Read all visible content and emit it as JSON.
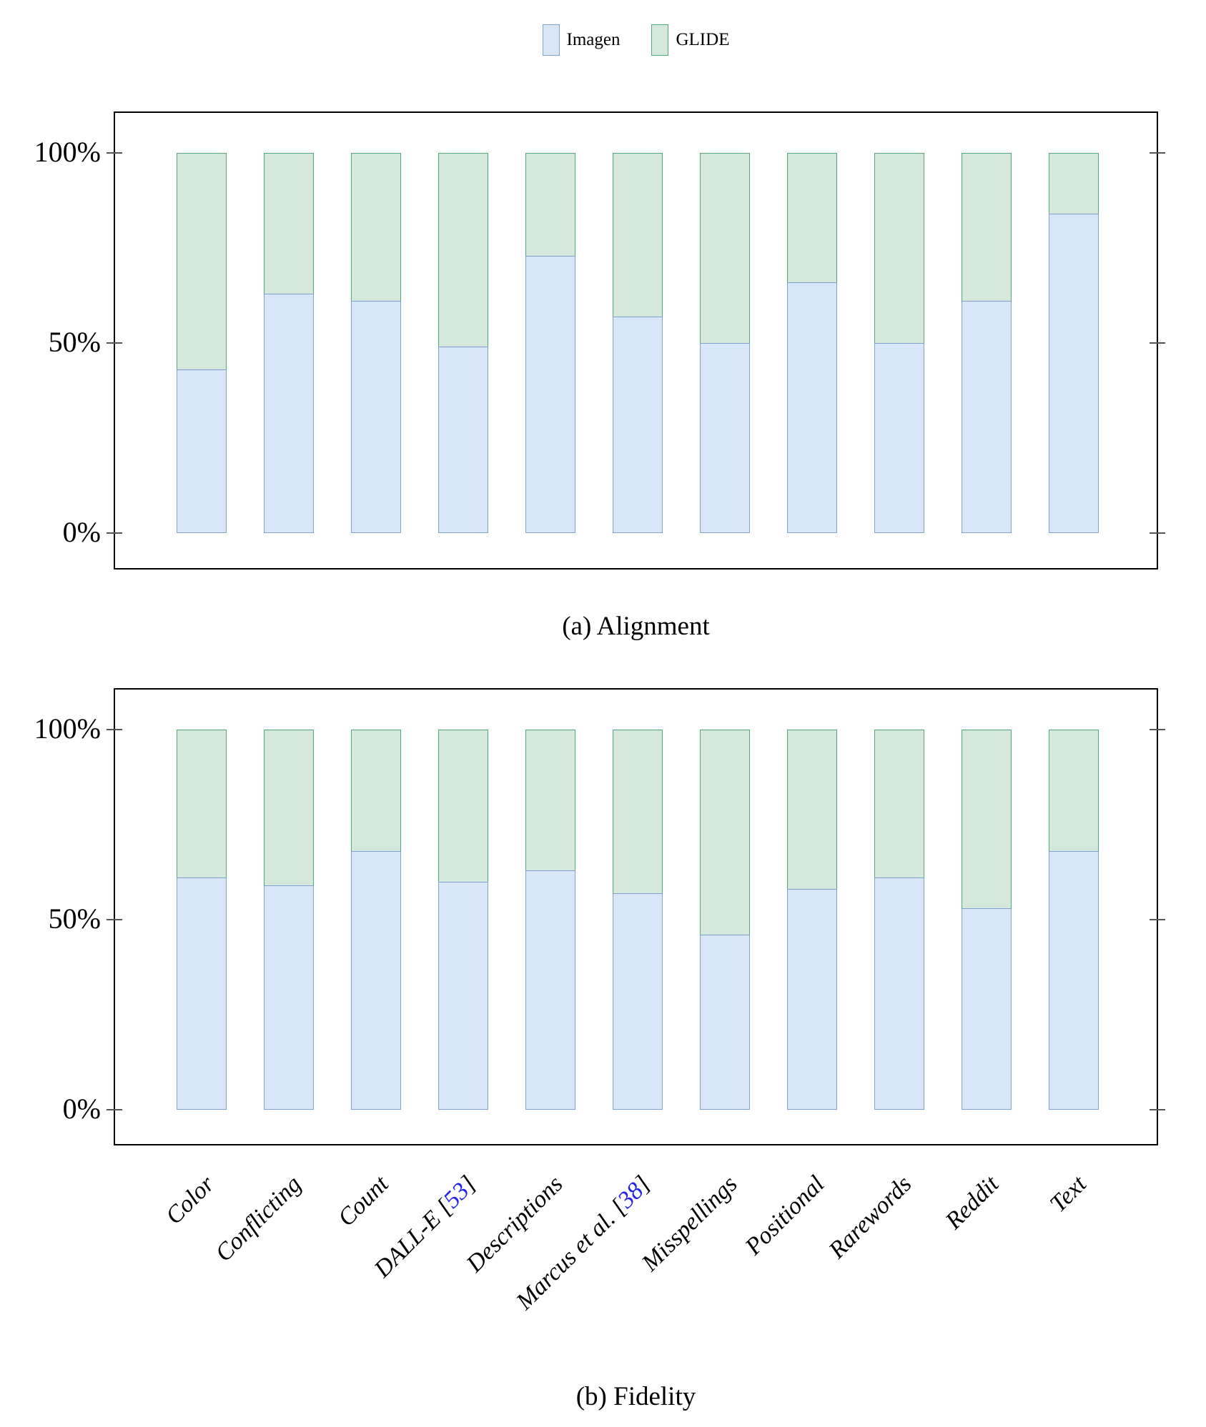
{
  "colors": {
    "imagen_fill": "#d9e6f8",
    "imagen_border": "#7fa3d1",
    "glide_fill": "#d4e9db",
    "glide_border": "#50a97d",
    "axis": "#000000",
    "tick": "#555555",
    "citation_blue": "#2222ee"
  },
  "legend": {
    "items": [
      {
        "label": "Imagen",
        "color_key": "imagen"
      },
      {
        "label": "GLIDE",
        "color_key": "glide"
      }
    ]
  },
  "chart_data": [
    {
      "type": "bar",
      "stacked": true,
      "title": "(a) Alignment",
      "categories": [
        "Color",
        "Conflicting",
        "Count",
        "DALL-E [53]",
        "Descriptions",
        "Marcus et al. [38]",
        "Misspellings",
        "Positional",
        "Rarewords",
        "Reddit",
        "Text"
      ],
      "series": [
        {
          "name": "Imagen",
          "values": [
            43,
            63,
            61,
            49,
            73,
            57,
            50,
            66,
            50,
            61,
            84
          ]
        },
        {
          "name": "GLIDE",
          "values": [
            57,
            37,
            39,
            51,
            27,
            43,
            50,
            34,
            50,
            39,
            16
          ]
        }
      ],
      "ylabel": "",
      "xlabel": "",
      "ylim": [
        0,
        100
      ],
      "yticks": [
        {
          "label": "0%",
          "value": 0
        },
        {
          "label": "50%",
          "value": 50
        },
        {
          "label": "100%",
          "value": 100
        }
      ],
      "grid": false,
      "legend_position": "top-center",
      "show_x_labels": false,
      "units": "percent preference"
    },
    {
      "type": "bar",
      "stacked": true,
      "title": "(b) Fidelity",
      "categories": [
        "Color",
        "Conflicting",
        "Count",
        "DALL-E [53]",
        "Descriptions",
        "Marcus et al. [38]",
        "Misspellings",
        "Positional",
        "Rarewords",
        "Reddit",
        "Text"
      ],
      "series": [
        {
          "name": "Imagen",
          "values": [
            61,
            59,
            68,
            60,
            63,
            57,
            46,
            58,
            61,
            53,
            68
          ]
        },
        {
          "name": "GLIDE",
          "values": [
            39,
            41,
            32,
            40,
            37,
            43,
            54,
            42,
            39,
            47,
            32
          ]
        }
      ],
      "ylabel": "",
      "xlabel": "",
      "ylim": [
        0,
        100
      ],
      "yticks": [
        {
          "label": "0%",
          "value": 0
        },
        {
          "label": "50%",
          "value": 50
        },
        {
          "label": "100%",
          "value": 100
        }
      ],
      "grid": false,
      "legend_position": "shared-top",
      "show_x_labels": true,
      "units": "percent preference"
    }
  ]
}
